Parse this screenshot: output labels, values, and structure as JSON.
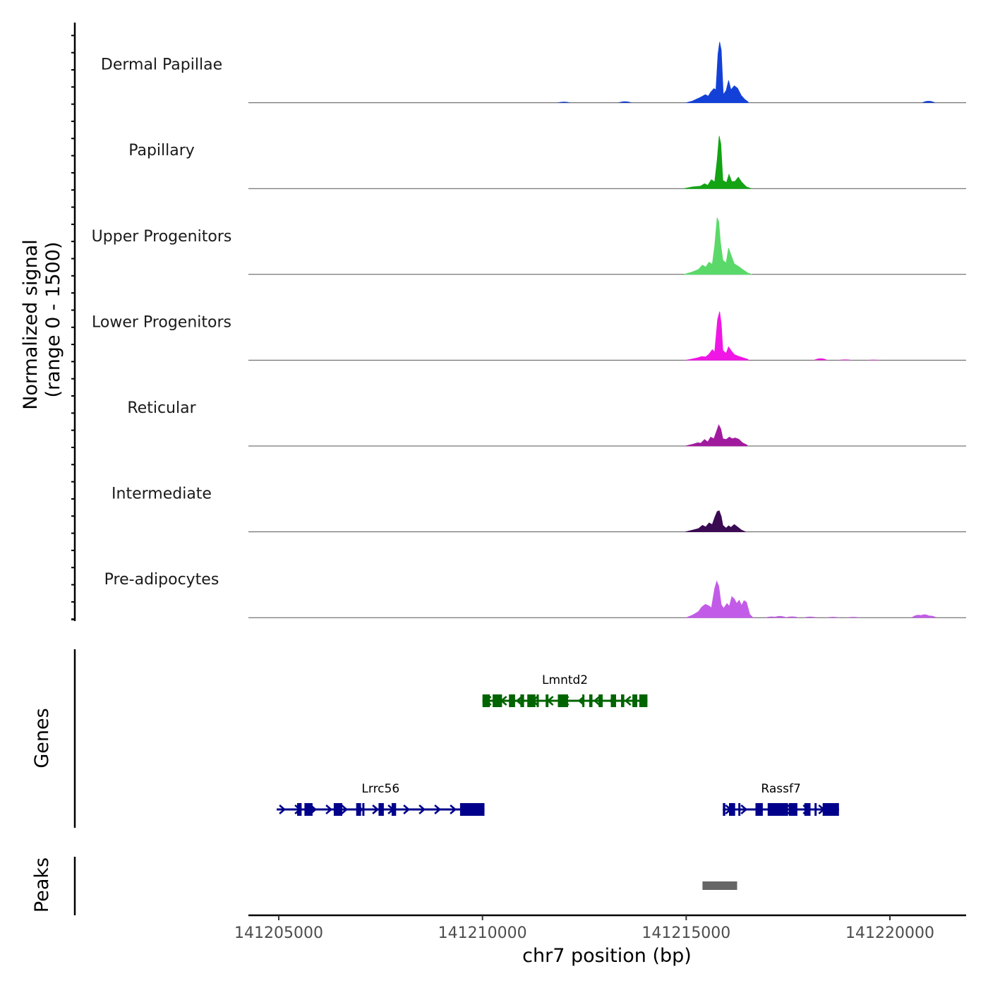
{
  "chart_data": {
    "type": "area",
    "title": "",
    "xlabel": "chr7 position (bp)",
    "ylabel": "Normalized signal\n(range 0 - 1500)",
    "ylabel_lines": [
      "Normalized signal",
      "(range 0 - 1500)"
    ],
    "genes_label": "Genes",
    "peaks_label": "Peaks",
    "xlim": [
      141204250,
      141221900
    ],
    "x_ticks": [
      141205000,
      141210000,
      141215000,
      141220000
    ],
    "x_tick_labels": [
      "141205000",
      "141210000",
      "141215000",
      "141220000"
    ],
    "ylim": [
      0,
      1500
    ],
    "series": [
      {
        "name": "Dermal Papillae",
        "color": "#1341D8",
        "points": [
          [
            141215000,
            0
          ],
          [
            141215150,
            40
          ],
          [
            141215300,
            110
          ],
          [
            141215380,
            150
          ],
          [
            141215470,
            200
          ],
          [
            141215540,
            160
          ],
          [
            141215600,
            260
          ],
          [
            141215680,
            350
          ],
          [
            141215730,
            320
          ],
          [
            141215780,
            1200
          ],
          [
            141215820,
            1500
          ],
          [
            141215860,
            1300
          ],
          [
            141215910,
            200
          ],
          [
            141215980,
            300
          ],
          [
            141216040,
            550
          ],
          [
            141216100,
            320
          ],
          [
            141216180,
            420
          ],
          [
            141216260,
            360
          ],
          [
            141216350,
            180
          ],
          [
            141216430,
            90
          ],
          [
            141216520,
            20
          ]
        ],
        "minor": [
          [
            141212000,
            25
          ],
          [
            141213500,
            35
          ],
          [
            141220950,
            45
          ]
        ]
      },
      {
        "name": "Papillary",
        "color": "#13A313",
        "points": [
          [
            141214950,
            0
          ],
          [
            141215150,
            40
          ],
          [
            141215350,
            60
          ],
          [
            141215450,
            120
          ],
          [
            141215530,
            80
          ],
          [
            141215620,
            220
          ],
          [
            141215700,
            160
          ],
          [
            141215760,
            700
          ],
          [
            141215810,
            1300
          ],
          [
            141215850,
            1100
          ],
          [
            141215900,
            200
          ],
          [
            141215990,
            150
          ],
          [
            141216050,
            350
          ],
          [
            141216120,
            170
          ],
          [
            141216200,
            180
          ],
          [
            141216280,
            280
          ],
          [
            141216360,
            160
          ],
          [
            141216480,
            40
          ],
          [
            141216600,
            0
          ]
        ],
        "minor": []
      },
      {
        "name": "Upper Progenitors",
        "color": "#5AD96A",
        "points": [
          [
            141214950,
            0
          ],
          [
            141215150,
            60
          ],
          [
            141215300,
            120
          ],
          [
            141215400,
            230
          ],
          [
            141215480,
            180
          ],
          [
            141215560,
            300
          ],
          [
            141215640,
            250
          ],
          [
            141215700,
            700
          ],
          [
            141215760,
            1400
          ],
          [
            141215800,
            1300
          ],
          [
            141215840,
            800
          ],
          [
            141215900,
            350
          ],
          [
            141215980,
            280
          ],
          [
            141216040,
            650
          ],
          [
            141216100,
            480
          ],
          [
            141216180,
            260
          ],
          [
            141216280,
            200
          ],
          [
            141216400,
            110
          ],
          [
            141216520,
            30
          ],
          [
            141216620,
            0
          ]
        ],
        "minor": []
      },
      {
        "name": "Lower Progenitors",
        "color": "#F016E5",
        "points": [
          [
            141215000,
            0
          ],
          [
            141215150,
            30
          ],
          [
            141215280,
            60
          ],
          [
            141215380,
            90
          ],
          [
            141215480,
            80
          ],
          [
            141215560,
            150
          ],
          [
            141215640,
            260
          ],
          [
            141215700,
            200
          ],
          [
            141215770,
            1000
          ],
          [
            141215820,
            1200
          ],
          [
            141215860,
            900
          ],
          [
            141215900,
            240
          ],
          [
            141215980,
            170
          ],
          [
            141216040,
            330
          ],
          [
            141216100,
            240
          ],
          [
            141216180,
            140
          ],
          [
            141216280,
            100
          ],
          [
            141216400,
            60
          ],
          [
            141216520,
            20
          ]
        ],
        "minor": [
          [
            141218300,
            45
          ],
          [
            141218900,
            18
          ],
          [
            141219600,
            12
          ]
        ]
      },
      {
        "name": "Reticular",
        "color": "#A01A9E",
        "points": [
          [
            141214980,
            0
          ],
          [
            141215150,
            40
          ],
          [
            141215280,
            80
          ],
          [
            141215360,
            70
          ],
          [
            141215450,
            160
          ],
          [
            141215530,
            100
          ],
          [
            141215600,
            220
          ],
          [
            141215680,
            180
          ],
          [
            141215740,
            350
          ],
          [
            141215800,
            520
          ],
          [
            141215850,
            420
          ],
          [
            141215900,
            180
          ],
          [
            141215980,
            160
          ],
          [
            141216060,
            220
          ],
          [
            141216130,
            180
          ],
          [
            141216200,
            200
          ],
          [
            141216290,
            170
          ],
          [
            141216380,
            80
          ],
          [
            141216500,
            20
          ]
        ],
        "minor": []
      },
      {
        "name": "Intermediate",
        "color": "#3A0A52",
        "points": [
          [
            141214980,
            0
          ],
          [
            141215150,
            40
          ],
          [
            141215300,
            80
          ],
          [
            141215400,
            160
          ],
          [
            141215480,
            120
          ],
          [
            141215560,
            220
          ],
          [
            141215640,
            180
          ],
          [
            141215700,
            350
          ],
          [
            141215760,
            500
          ],
          [
            141215810,
            520
          ],
          [
            141215860,
            380
          ],
          [
            141215900,
            160
          ],
          [
            141215980,
            90
          ],
          [
            141216040,
            150
          ],
          [
            141216100,
            110
          ],
          [
            141216180,
            180
          ],
          [
            141216260,
            120
          ],
          [
            141216360,
            40
          ],
          [
            141216460,
            0
          ]
        ],
        "minor": []
      },
      {
        "name": "Pre-adipocytes",
        "color": "#C25CE8",
        "points": [
          [
            141215000,
            0
          ],
          [
            141215150,
            60
          ],
          [
            141215300,
            150
          ],
          [
            141215380,
            260
          ],
          [
            141215470,
            330
          ],
          [
            141215560,
            290
          ],
          [
            141215620,
            240
          ],
          [
            141215700,
            720
          ],
          [
            141215750,
            900
          ],
          [
            141215800,
            780
          ],
          [
            141215860,
            320
          ],
          [
            141215920,
            230
          ],
          [
            141216000,
            350
          ],
          [
            141216060,
            280
          ],
          [
            141216120,
            520
          ],
          [
            141216180,
            460
          ],
          [
            141216240,
            350
          ],
          [
            141216300,
            430
          ],
          [
            141216360,
            300
          ],
          [
            141216420,
            420
          ],
          [
            141216480,
            380
          ],
          [
            141216560,
            80
          ],
          [
            141216640,
            0
          ]
        ],
        "minor": [
          [
            141217100,
            28
          ],
          [
            141217300,
            40
          ],
          [
            141217600,
            30
          ],
          [
            141218050,
            25
          ],
          [
            141218600,
            22
          ],
          [
            141219100,
            18
          ],
          [
            141220700,
            70
          ],
          [
            141220850,
            80
          ],
          [
            141220980,
            50
          ]
        ]
      }
    ],
    "genes": [
      {
        "name": "Lmntd2",
        "strand": "-",
        "start": 141210000,
        "end": 141214050,
        "row": 1,
        "color": "#006400",
        "exons": [
          [
            141210000,
            141210180
          ],
          [
            141210250,
            141210480
          ],
          [
            141210650,
            141210800
          ],
          [
            141210930,
            141211020
          ],
          [
            141211100,
            141211300
          ],
          [
            141211330,
            141211380
          ],
          [
            141211550,
            141211620
          ],
          [
            141211850,
            141212100
          ],
          [
            141212450,
            141212500
          ],
          [
            141212620,
            141212700
          ],
          [
            141212850,
            141212950
          ],
          [
            141213150,
            141213280
          ],
          [
            141213400,
            141213480
          ],
          [
            141213680,
            141213800
          ],
          [
            141213850,
            141214050
          ]
        ]
      },
      {
        "name": "Lrrc56",
        "strand": "+",
        "start": 141204950,
        "end": 141210050,
        "row": 2,
        "color": "#00008B",
        "exons": [
          [
            141205450,
            141205560
          ],
          [
            141205630,
            141205830
          ],
          [
            141206350,
            141206560
          ],
          [
            141206900,
            141207020
          ],
          [
            141207050,
            141207100
          ],
          [
            141207450,
            141207580
          ],
          [
            141207770,
            141207880
          ],
          [
            141209450,
            141210050
          ]
        ]
      },
      {
        "name": "Rassf7",
        "strand": "+",
        "start": 141215900,
        "end": 141218750,
        "row": 2,
        "color": "#00008B",
        "exons": [
          [
            141215900,
            141215960
          ],
          [
            141216050,
            141216200
          ],
          [
            141216280,
            141216300
          ],
          [
            141216700,
            141216880
          ],
          [
            141217000,
            141217500
          ],
          [
            141217520,
            141217730
          ],
          [
            141217900,
            141218050
          ],
          [
            141218150,
            141218180
          ],
          [
            141218350,
            141218750
          ]
        ]
      }
    ],
    "peaks": [
      {
        "start": 141215400,
        "end": 141216250,
        "color": "#666666"
      }
    ]
  }
}
